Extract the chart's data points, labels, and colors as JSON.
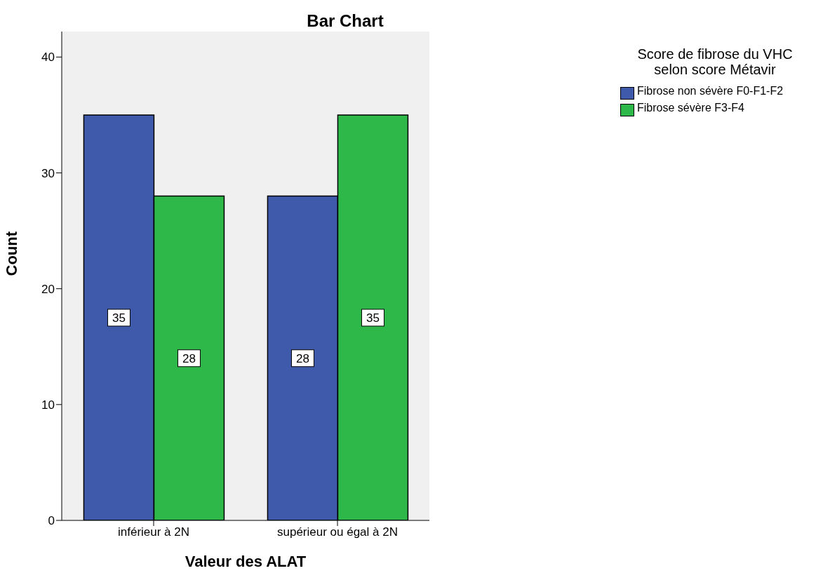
{
  "chart_data": {
    "type": "bar",
    "title": "Bar Chart",
    "xlabel": "Valeur des ALAT",
    "ylabel": "Count",
    "legend_title": "Score de fibrose du VHC selon score Métavir",
    "categories": [
      "inférieur à 2N",
      "supérieur ou égal à 2N"
    ],
    "series": [
      {
        "name": "Fibrose non sévère F0-F1-F2",
        "color": "#3f59ab",
        "values": [
          35,
          28
        ]
      },
      {
        "name": "Fibrose sévère F3-F4",
        "color": "#2eb84a",
        "values": [
          28,
          35
        ]
      }
    ],
    "ylim": [
      0,
      42.2
    ],
    "yticks": [
      0,
      10,
      20,
      30,
      40
    ],
    "grid": false,
    "legend": "top right",
    "data_labels": true
  }
}
